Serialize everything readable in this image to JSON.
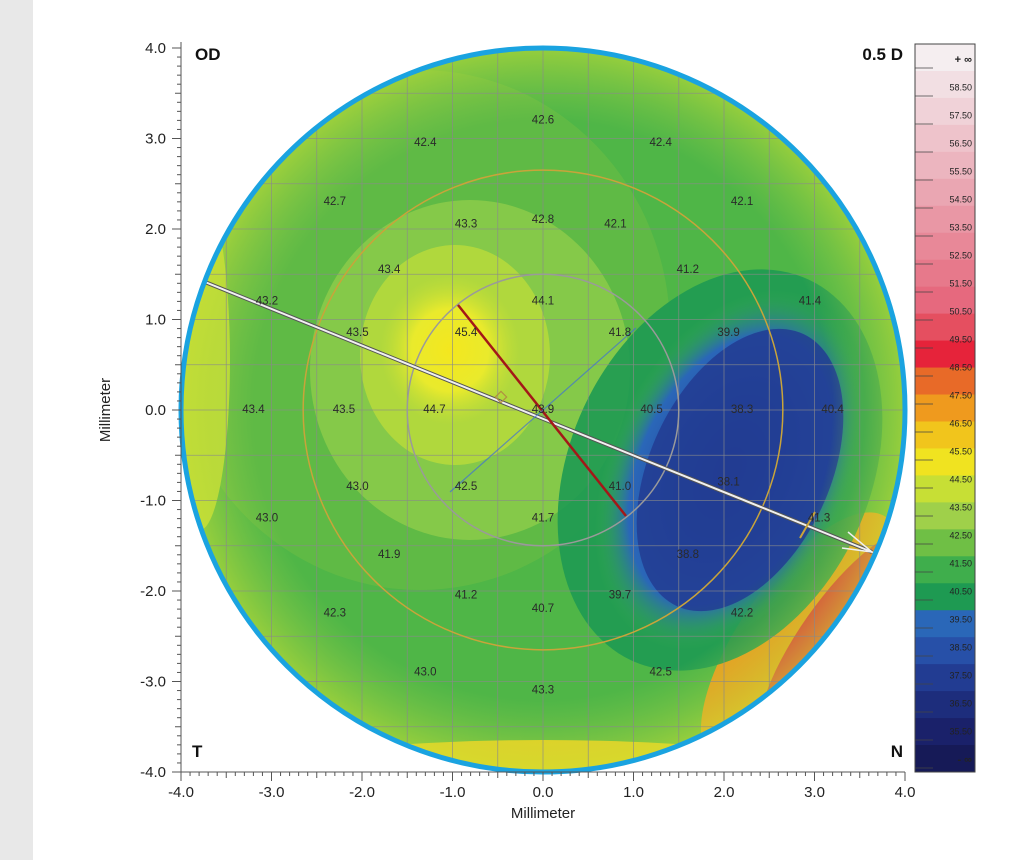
{
  "colors": {
    "ring": "#1aa3e0",
    "grid": "#8a8a8a",
    "steep_axis": "#a31818",
    "flat_axis": "#3e6fd8",
    "line": "#f0f0f0"
  },
  "chart_data": {
    "type": "heatmap",
    "title": "",
    "xlabel": "Millimeter",
    "ylabel": "Millimeter",
    "xlim": [
      -4.0,
      4.0
    ],
    "ylim": [
      -4.0,
      4.0
    ],
    "x_ticks": [
      "-4.0",
      "-3.0",
      "-2.0",
      "-1.0",
      "0.0",
      "1.0",
      "2.0",
      "3.0",
      "4.0"
    ],
    "y_ticks": [
      "4.0",
      "3.0",
      "2.0",
      "1.0",
      "0.0",
      "-1.0",
      "-2.0",
      "-3.0",
      "-4.0"
    ],
    "grid": true,
    "corner_labels": {
      "top_left": "OD",
      "top_right": "0.5 D",
      "bottom_left": "T",
      "bottom_right": "N"
    },
    "values": [
      {
        "x": 0.0,
        "y": 3.2,
        "label": "42.6"
      },
      {
        "x": -1.3,
        "y": 2.95,
        "label": "42.4"
      },
      {
        "x": 1.3,
        "y": 2.95,
        "label": "42.4"
      },
      {
        "x": -2.3,
        "y": 2.3,
        "label": "42.7"
      },
      {
        "x": -0.85,
        "y": 2.05,
        "label": "43.3"
      },
      {
        "x": 0.0,
        "y": 2.1,
        "label": "42.8"
      },
      {
        "x": 0.8,
        "y": 2.05,
        "label": "42.1"
      },
      {
        "x": 2.2,
        "y": 2.3,
        "label": "42.1"
      },
      {
        "x": -1.7,
        "y": 1.55,
        "label": "43.4"
      },
      {
        "x": 1.6,
        "y": 1.55,
        "label": "41.2"
      },
      {
        "x": -3.05,
        "y": 1.2,
        "label": "43.2"
      },
      {
        "x": 0.0,
        "y": 1.2,
        "label": "44.1"
      },
      {
        "x": 2.95,
        "y": 1.2,
        "label": "41.4"
      },
      {
        "x": -2.05,
        "y": 0.85,
        "label": "43.5"
      },
      {
        "x": -0.85,
        "y": 0.85,
        "label": "45.4"
      },
      {
        "x": 0.85,
        "y": 0.85,
        "label": "41.8"
      },
      {
        "x": 2.05,
        "y": 0.85,
        "label": "39.9"
      },
      {
        "x": -3.2,
        "y": 0.0,
        "label": "43.4"
      },
      {
        "x": -2.2,
        "y": 0.0,
        "label": "43.5"
      },
      {
        "x": -1.2,
        "y": 0.0,
        "label": "44.7"
      },
      {
        "x": 0.0,
        "y": 0.0,
        "label": "43.9"
      },
      {
        "x": 1.2,
        "y": 0.0,
        "label": "40.5"
      },
      {
        "x": 2.2,
        "y": 0.0,
        "label": "38.3"
      },
      {
        "x": 3.2,
        "y": 0.0,
        "label": "40.4"
      },
      {
        "x": -2.05,
        "y": -0.85,
        "label": "43.0"
      },
      {
        "x": -0.85,
        "y": -0.85,
        "label": "42.5"
      },
      {
        "x": 0.85,
        "y": -0.85,
        "label": "41.0"
      },
      {
        "x": 2.05,
        "y": -0.8,
        "label": "38.1"
      },
      {
        "x": -3.05,
        "y": -1.2,
        "label": "43.0"
      },
      {
        "x": 0.0,
        "y": -1.2,
        "label": "41.7"
      },
      {
        "x": 3.05,
        "y": -1.2,
        "label": "41.3"
      },
      {
        "x": -1.7,
        "y": -1.6,
        "label": "41.9"
      },
      {
        "x": 1.6,
        "y": -1.6,
        "label": "38.8"
      },
      {
        "x": -0.85,
        "y": -2.05,
        "label": "41.2"
      },
      {
        "x": 0.0,
        "y": -2.2,
        "label": "40.7"
      },
      {
        "x": 0.85,
        "y": -2.05,
        "label": "39.7"
      },
      {
        "x": -2.3,
        "y": -2.25,
        "label": "42.3"
      },
      {
        "x": 2.2,
        "y": -2.25,
        "label": "42.2"
      },
      {
        "x": -1.3,
        "y": -2.9,
        "label": "43.0"
      },
      {
        "x": 1.3,
        "y": -2.9,
        "label": "42.5"
      },
      {
        "x": 0.0,
        "y": -3.1,
        "label": "43.3"
      }
    ],
    "color_scale": {
      "step": "0.5 D",
      "labels": [
        "+ ∞",
        "58.50",
        "57.50",
        "56.50",
        "55.50",
        "54.50",
        "53.50",
        "52.50",
        "51.50",
        "50.50",
        "49.50",
        "48.50",
        "47.50",
        "46.50",
        "45.50",
        "44.50",
        "43.50",
        "42.50",
        "41.50",
        "40.50",
        "39.50",
        "38.50",
        "37.50",
        "36.50",
        "35.50",
        "- ∞"
      ],
      "colors": [
        "#f5eef0",
        "#f2dfe3",
        "#f0d2d8",
        "#eec3cb",
        "#ecb5bf",
        "#eaa6b2",
        "#e997a5",
        "#e88898",
        "#e7798b",
        "#e6697e",
        "#e54f60",
        "#e6233a",
        "#e86a28",
        "#ef9a1e",
        "#f1c51c",
        "#f0e320",
        "#c7df35",
        "#9fd04a",
        "#6fbf45",
        "#3fae4c",
        "#1e9a52",
        "#2a67b8",
        "#2750a8",
        "#223c92",
        "#1d2d7c",
        "#1a216a",
        "#161a57"
      ]
    }
  }
}
